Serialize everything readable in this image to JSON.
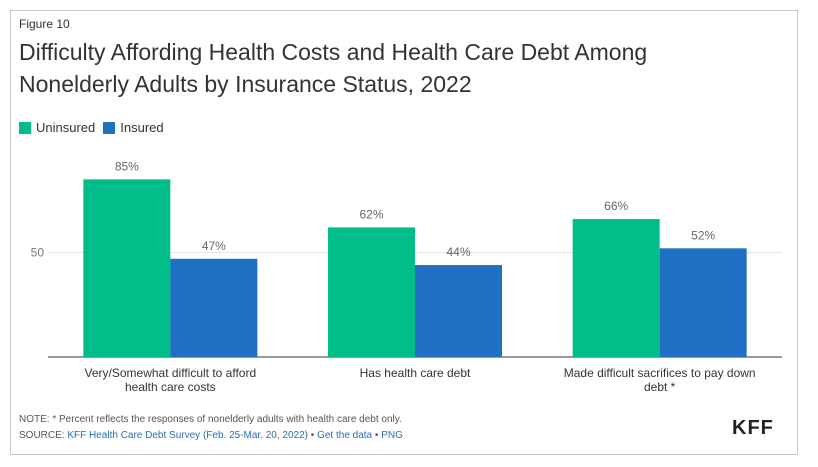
{
  "figure_label": "Figure 10",
  "title": "Difficulty Affording Health Costs and Health Care Debt Among Nonelderly Adults by Insurance Status, 2022",
  "note": "NOTE: * Percent reflects the responses of nonelderly adults with health care debt only.",
  "source": {
    "prefix": "SOURCE: ",
    "survey": "KFF Health Care Debt Survey (Feb. 25-Mar. 20, 2022)",
    "sep1": " • ",
    "get_data": "Get the data",
    "sep2": " • ",
    "png": "PNG"
  },
  "logo": "KFF",
  "chart_data": {
    "type": "bar",
    "categories": [
      "Very/Somewhat difficult to afford health care costs",
      "Has health care debt",
      "Made difficult sacrifices to pay down debt *"
    ],
    "series": [
      {
        "name": "Uninsured",
        "color": "#00bd8a",
        "values": [
          85,
          62,
          66
        ],
        "labels": [
          "85%",
          "62%",
          "66%"
        ]
      },
      {
        "name": "Insured",
        "color": "#1f6fc5",
        "values": [
          47,
          44,
          52
        ],
        "labels": [
          "47%",
          "44%",
          "52%"
        ]
      }
    ],
    "ylim": [
      0,
      100
    ],
    "yticks": [
      50
    ],
    "ytick_labels": [
      "50"
    ],
    "grid": true,
    "legend": "top-left"
  }
}
